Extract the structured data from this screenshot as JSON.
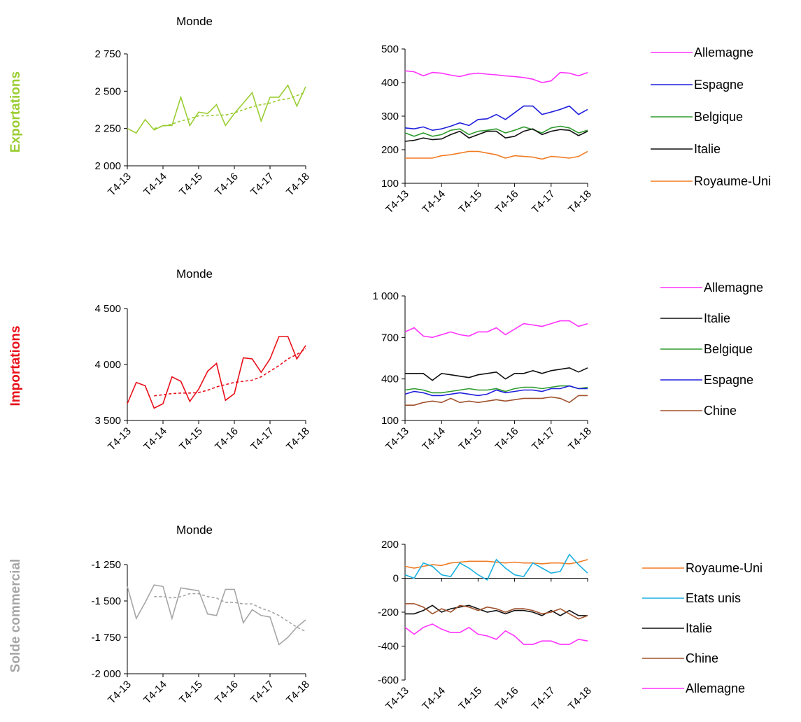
{
  "row_labels": [
    {
      "text": "Exportations",
      "color": "#9acd32"
    },
    {
      "text": "Importations",
      "color": "#e8101a"
    },
    {
      "text": "Solde commercial",
      "color": "#a6a6a6"
    }
  ],
  "colors": {
    "Allemagne": "#ff33ff",
    "Espagne": "#1f1fdd",
    "Belgique": "#2e9b2e",
    "Italie": "#111111",
    "Royaume-Uni": "#f07c24",
    "Chine": "#a0522d",
    "Etats unis": "#1ab0e0"
  },
  "chart_data": [
    {
      "type": "line",
      "title": "Monde",
      "x_ticks": [
        "T4-13",
        "T4-14",
        "T4-15",
        "T4-16",
        "T4-17",
        "T4-18"
      ],
      "ylim": [
        2000,
        2750
      ],
      "y_ticks": [
        2000,
        2250,
        2500,
        2750
      ],
      "y_tick_labels": [
        "2 000",
        "2 250",
        "2 500",
        "2 750"
      ],
      "series": [
        {
          "color": "#9acd32",
          "style": "solid",
          "values": [
            2250,
            2220,
            2310,
            2240,
            2270,
            2270,
            2460,
            2270,
            2360,
            2350,
            2410,
            2270,
            2350,
            2420,
            2490,
            2300,
            2460,
            2460,
            2540,
            2400,
            2530
          ]
        },
        {
          "color": "#9acd32",
          "style": "dashed",
          "start": 3,
          "values": [
            2250,
            2265,
            2280,
            2300,
            2315,
            2335,
            2335,
            2340,
            2340,
            2355,
            2375,
            2395,
            2410,
            2420,
            2440,
            2450,
            2470,
            2495
          ]
        }
      ]
    },
    {
      "type": "line",
      "title": "",
      "x_ticks": [
        "T4-13",
        "T4-14",
        "T4-15",
        "T4-16",
        "T4-17",
        "T4-18"
      ],
      "ylim": [
        100,
        500
      ],
      "y_ticks": [
        100,
        200,
        300,
        400,
        500
      ],
      "y_tick_labels": [
        "100",
        "200",
        "300",
        "400",
        "500"
      ],
      "series": [
        {
          "name": "Allemagne",
          "color": "#ff33ff",
          "values": [
            435,
            432,
            420,
            430,
            428,
            422,
            418,
            425,
            428,
            425,
            423,
            420,
            418,
            415,
            410,
            400,
            405,
            430,
            428,
            420,
            430
          ]
        },
        {
          "name": "Espagne",
          "color": "#1f1fdd",
          "values": [
            265,
            262,
            268,
            258,
            262,
            270,
            280,
            272,
            290,
            292,
            305,
            290,
            310,
            330,
            330,
            305,
            312,
            320,
            330,
            305,
            320
          ]
        },
        {
          "name": "Belgique",
          "color": "#2e9b2e",
          "values": [
            250,
            240,
            250,
            240,
            245,
            258,
            262,
            245,
            255,
            258,
            262,
            250,
            258,
            268,
            260,
            250,
            265,
            270,
            265,
            250,
            258
          ]
        },
        {
          "name": "Italie",
          "color": "#111111",
          "values": [
            225,
            228,
            235,
            230,
            232,
            245,
            255,
            235,
            245,
            255,
            255,
            235,
            240,
            255,
            262,
            245,
            255,
            260,
            258,
            242,
            255
          ]
        },
        {
          "name": "Royaume-Uni",
          "color": "#f07c24",
          "values": [
            175,
            175,
            175,
            175,
            182,
            185,
            190,
            195,
            195,
            190,
            185,
            175,
            182,
            180,
            178,
            172,
            180,
            178,
            175,
            180,
            195
          ]
        }
      ]
    },
    {
      "type": "line",
      "title": "Monde",
      "x_ticks": [
        "T4-13",
        "T4-14",
        "T4-15",
        "T4-16",
        "T4-17",
        "T4-18"
      ],
      "ylim": [
        3500,
        4500
      ],
      "y_ticks": [
        3500,
        4000,
        4500
      ],
      "y_tick_labels": [
        "3 500",
        "4 000",
        "4 500"
      ],
      "series": [
        {
          "color": "#e8101a",
          "style": "solid",
          "values": [
            3650,
            3840,
            3810,
            3610,
            3650,
            3890,
            3850,
            3670,
            3780,
            3940,
            4010,
            3680,
            3740,
            4060,
            4050,
            3930,
            4050,
            4250,
            4250,
            4050,
            4170
          ]
        },
        {
          "color": "#e8101a",
          "style": "dashed",
          "start": 3,
          "values": [
            3720,
            3730,
            3740,
            3745,
            3745,
            3750,
            3770,
            3800,
            3820,
            3840,
            3850,
            3860,
            3890,
            3940,
            3990,
            4050,
            4090,
            4140
          ]
        }
      ]
    },
    {
      "type": "line",
      "title": "",
      "x_ticks": [
        "T4-13",
        "T4-14",
        "T4-15",
        "T4-16",
        "T4-17",
        "T4-18"
      ],
      "ylim": [
        100,
        1000
      ],
      "y_ticks": [
        100,
        400,
        700,
        1000
      ],
      "y_tick_labels": [
        "100",
        "400",
        "700",
        "1 000"
      ],
      "series": [
        {
          "name": "Allemagne",
          "color": "#ff33ff",
          "values": [
            740,
            770,
            710,
            700,
            720,
            740,
            720,
            710,
            740,
            740,
            770,
            720,
            760,
            800,
            790,
            780,
            800,
            820,
            820,
            780,
            800
          ]
        },
        {
          "name": "Italie",
          "color": "#111111",
          "values": [
            440,
            440,
            440,
            390,
            440,
            430,
            420,
            410,
            430,
            440,
            450,
            400,
            440,
            440,
            460,
            440,
            460,
            470,
            480,
            450,
            480
          ]
        },
        {
          "name": "Belgique",
          "color": "#2e9b2e",
          "values": [
            320,
            330,
            320,
            300,
            300,
            310,
            320,
            330,
            320,
            320,
            330,
            310,
            330,
            340,
            340,
            330,
            340,
            350,
            350,
            330,
            340
          ]
        },
        {
          "name": "Espagne",
          "color": "#1f1fdd",
          "values": [
            290,
            310,
            300,
            280,
            280,
            290,
            300,
            290,
            280,
            290,
            320,
            300,
            310,
            320,
            320,
            310,
            330,
            330,
            350,
            330,
            330
          ]
        },
        {
          "name": "Chine",
          "color": "#a0522d",
          "values": [
            210,
            210,
            230,
            240,
            230,
            260,
            230,
            240,
            230,
            240,
            250,
            240,
            250,
            260,
            260,
            260,
            270,
            260,
            230,
            280,
            280
          ]
        }
      ]
    },
    {
      "type": "line",
      "title": "Monde",
      "x_ticks": [
        "T4-13",
        "T4-14",
        "T4-15",
        "T4-16",
        "T4-17",
        "T4-18"
      ],
      "ylim": [
        -2000,
        -1250
      ],
      "y_ticks": [
        -2000,
        -1750,
        -1500,
        -1250
      ],
      "y_tick_labels": [
        "-2 000",
        "-1 750",
        "-1 500",
        "-1 250"
      ],
      "series": [
        {
          "color": "#a6a6a6",
          "style": "solid",
          "values": [
            -1400,
            -1620,
            -1510,
            -1390,
            -1400,
            -1620,
            -1410,
            -1420,
            -1430,
            -1590,
            -1600,
            -1420,
            -1420,
            -1650,
            -1560,
            -1600,
            -1610,
            -1800,
            -1750,
            -1680,
            -1630
          ]
        },
        {
          "color": "#a6a6a6",
          "style": "dashed",
          "start": 3,
          "values": [
            -1470,
            -1470,
            -1480,
            -1470,
            -1450,
            -1450,
            -1470,
            -1480,
            -1510,
            -1510,
            -1520,
            -1520,
            -1550,
            -1570,
            -1600,
            -1640,
            -1680,
            -1710
          ]
        }
      ]
    },
    {
      "type": "line",
      "title": "",
      "x_ticks": [
        "T4-13",
        "T4-14",
        "T4-15",
        "T4-16",
        "T4-17",
        "T4-18"
      ],
      "ylim": [
        -600,
        200
      ],
      "y_ticks": [
        -600,
        -400,
        -200,
        0,
        200
      ],
      "y_tick_labels": [
        "-600",
        "-400",
        "-200",
        "0",
        "200"
      ],
      "series": [
        {
          "name": "Royaume-Uni",
          "color": "#f07c24",
          "values": [
            70,
            60,
            70,
            80,
            75,
            90,
            95,
            100,
            100,
            100,
            95,
            90,
            95,
            90,
            90,
            85,
            90,
            90,
            85,
            95,
            110
          ]
        },
        {
          "name": "Etats unis",
          "color": "#1ab0e0",
          "values": [
            20,
            0,
            90,
            70,
            20,
            10,
            90,
            60,
            20,
            -10,
            110,
            60,
            20,
            10,
            90,
            60,
            30,
            40,
            140,
            80,
            30
          ]
        },
        {
          "name": "Italie",
          "color": "#111111",
          "values": [
            -210,
            -210,
            -190,
            -160,
            -200,
            -180,
            -170,
            -160,
            -180,
            -200,
            -190,
            -210,
            -190,
            -190,
            -200,
            -220,
            -190,
            -220,
            -190,
            -220,
            -220
          ]
        },
        {
          "name": "Chine",
          "color": "#a0522d",
          "values": [
            -150,
            -150,
            -170,
            -210,
            -180,
            -200,
            -160,
            -170,
            -190,
            -170,
            -180,
            -200,
            -180,
            -180,
            -190,
            -210,
            -200,
            -180,
            -210,
            -240,
            -220
          ]
        },
        {
          "name": "Allemagne",
          "color": "#ff33ff",
          "values": [
            -290,
            -330,
            -290,
            -270,
            -300,
            -320,
            -320,
            -290,
            -330,
            -340,
            -360,
            -310,
            -340,
            -390,
            -390,
            -370,
            -370,
            -390,
            -390,
            -360,
            -370
          ]
        }
      ]
    }
  ]
}
